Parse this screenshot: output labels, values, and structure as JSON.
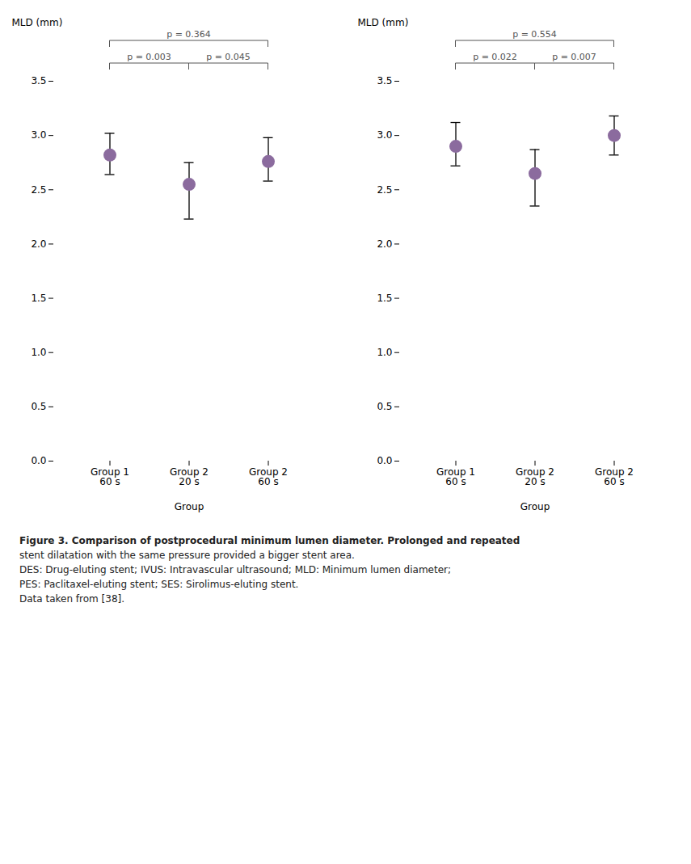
{
  "chart_data": [
    {
      "type": "scatter",
      "categories": [
        "Group 1\n60 s",
        "Group 2\n20 s",
        "Group 2\n60 s"
      ],
      "values": [
        2.82,
        2.55,
        2.76
      ],
      "errors_lower": [
        0.18,
        0.32,
        0.18
      ],
      "errors_upper": [
        0.2,
        0.2,
        0.22
      ],
      "color": "#8b6b9e",
      "xlabel": "Group",
      "ylabel": "MLD (mm)",
      "ylim": [
        0,
        3.5
      ],
      "yticks": [
        {
          "value": 0,
          "label": "0.0"
        },
        0.5,
        {
          "value": 1.0,
          "label": "1.0"
        },
        1.5,
        {
          "value": 2.0,
          "label": "2.0"
        },
        2.5,
        {
          "value": 3.0,
          "label": "3.0"
        },
        3.5
      ],
      "annotations": [
        {
          "text": "p = 0.003",
          "between": [
            "Group 1\n60 s",
            "Group 2\n20 s"
          ]
        },
        {
          "text": "p = 0.045",
          "between": [
            "Group 2\n20 s",
            "Group 2\n60 s"
          ]
        },
        {
          "text": "p = 0.364",
          "between": [
            "Group 1\n60 s",
            "Group 2\n60 s"
          ]
        }
      ]
    },
    {
      "type": "scatter",
      "categories": [
        "Group 1\n60 s",
        "Group 2\n20 s",
        "Group 2\n60 s"
      ],
      "values": [
        2.9,
        2.65,
        3.0
      ],
      "errors_lower": [
        0.18,
        0.3,
        0.18
      ],
      "errors_upper": [
        0.22,
        0.22,
        0.18
      ],
      "color": "#8b6b9e",
      "xlabel": "Group",
      "ylabel": "MLD (mm)",
      "ylim": [
        0,
        3.5
      ],
      "yticks": [
        {
          "value": 0,
          "label": "0.0"
        },
        0.5,
        {
          "value": 1.0,
          "label": "1.0"
        },
        1.5,
        {
          "value": 2.0,
          "label": "2.0"
        },
        2.5,
        {
          "value": 3.0,
          "label": "3.0"
        },
        3.5
      ],
      "annotations": [
        {
          "text": "p = 0.022",
          "between": [
            "Group 1\n60 s",
            "Group 2\n20 s"
          ]
        },
        {
          "text": "p = 0.007",
          "between": [
            "Group 2\n20 s",
            "Group 2\n60 s"
          ]
        },
        {
          "text": "p = 0.554",
          "between": [
            "Group 1\n60 s",
            "Group 2\n60 s"
          ]
        }
      ]
    }
  ],
  "caption": [
    "Figure 3. Comparison of postprocedural minimum lumen diameter. Prolonged and repeated",
    "stent dilatation with the same pressure provided a bigger stent area.",
    "DES: Drug-eluting stent; IVUS: Intravascular ultrasound; MLD: Minimum lumen diameter;",
    "PES: Paclitaxel-eluting stent; SES: Sirolimus-eluting stent.",
    "Data taken from [38]."
  ]
}
